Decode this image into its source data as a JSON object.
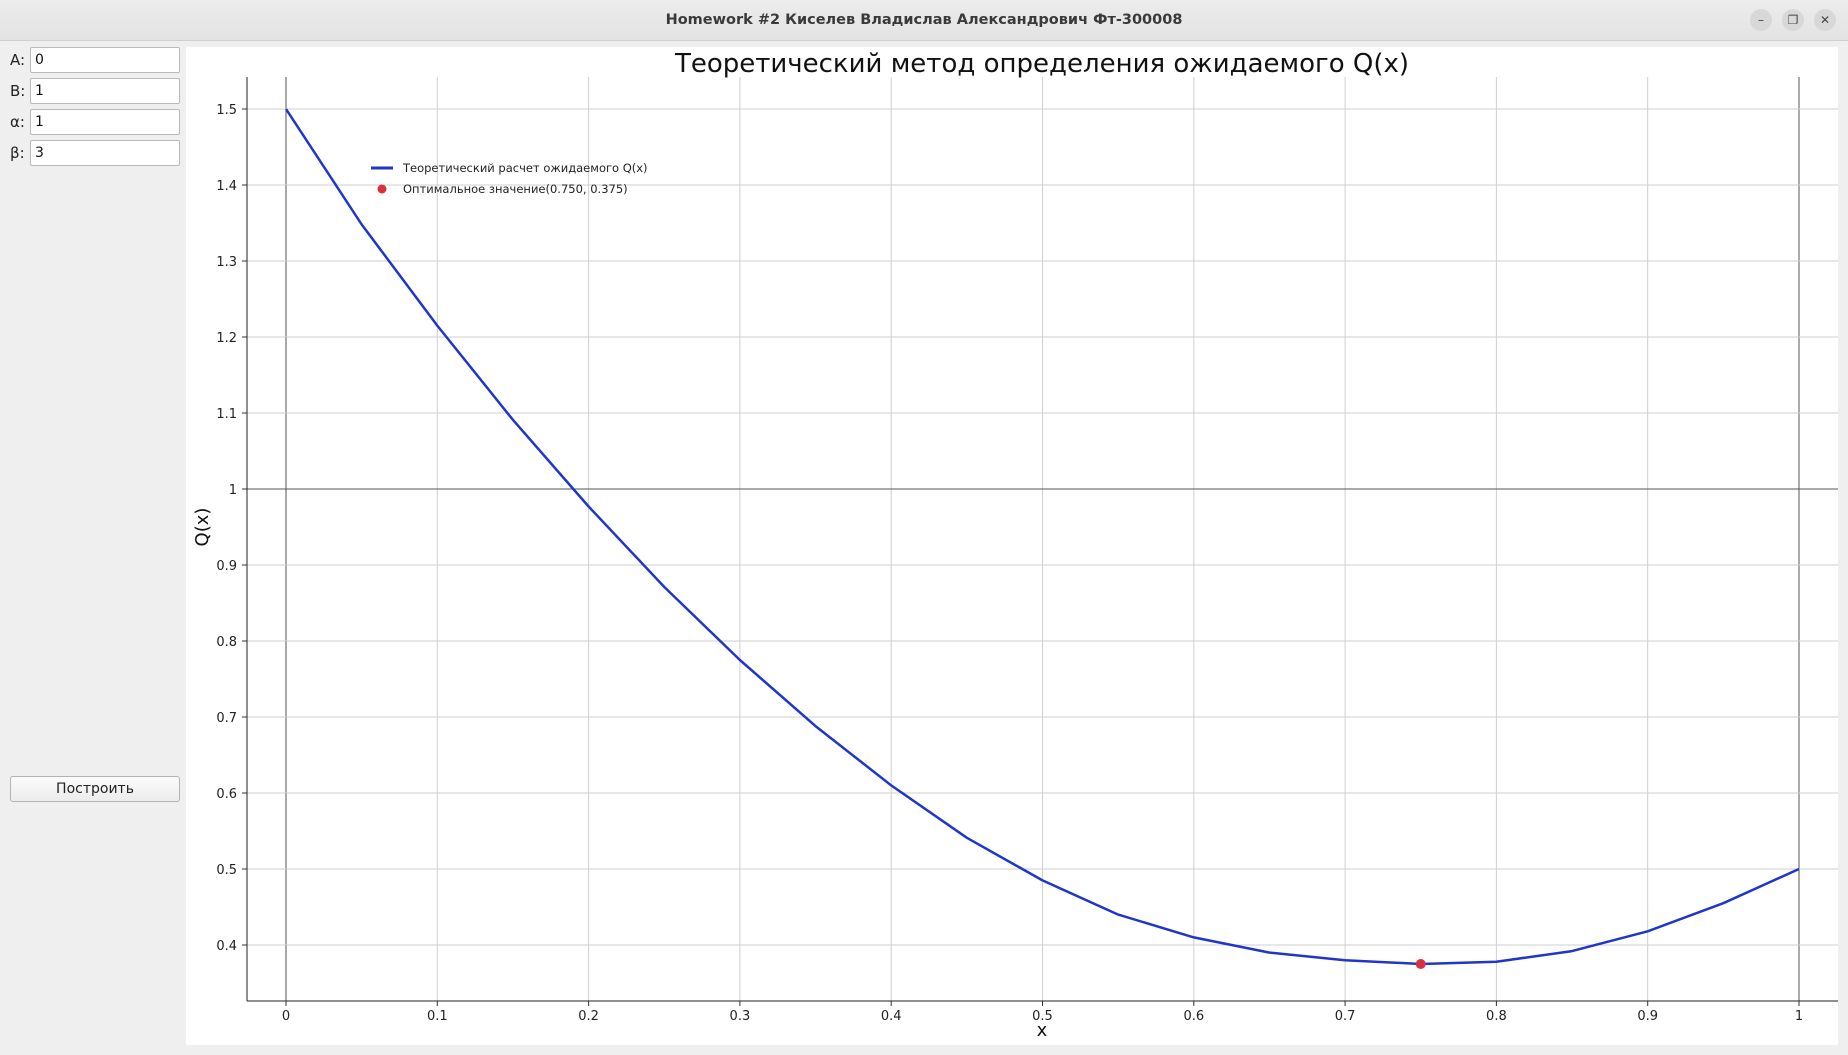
{
  "window": {
    "title": "Homework #2 Киселев Владислав Александрович Фт-300008",
    "buttons": {
      "minimize": "–",
      "restore": "❐",
      "close": "✕"
    }
  },
  "sidebar": {
    "params": [
      {
        "label": "A:",
        "value": "0"
      },
      {
        "label": "B:",
        "value": "1"
      },
      {
        "label": "α:",
        "value": "1"
      },
      {
        "label": "β:",
        "value": "3"
      }
    ],
    "build_button": "Построить"
  },
  "chart_data": {
    "type": "line",
    "title": "Теоретический метод определения ожидаемого Q(x)",
    "xlabel": "x",
    "ylabel": "Q(x)",
    "xlim": [
      0,
      1
    ],
    "ylim": [
      0.375,
      1.5
    ],
    "grid": true,
    "legend_position": "top-left",
    "x_ticks": [
      "0",
      "0.1",
      "0.2",
      "0.3",
      "0.4",
      "0.5",
      "0.6",
      "0.7",
      "0.8",
      "0.9",
      "1"
    ],
    "y_ticks": [
      "0.4",
      "0.5",
      "0.6",
      "0.7",
      "0.8",
      "0.9",
      "1",
      "1.1",
      "1.2",
      "1.3",
      "1.4",
      "1.5"
    ],
    "series": [
      {
        "name": "Теоретический расчет ожидаемого Q(x)",
        "color": "#1f36c8",
        "x": [
          0,
          0.05,
          0.1,
          0.15,
          0.2,
          0.25,
          0.3,
          0.35,
          0.4,
          0.45,
          0.5,
          0.55,
          0.6,
          0.65,
          0.7,
          0.75,
          0.8,
          0.85,
          0.9,
          0.95,
          1
        ],
        "y": [
          1.5,
          1.348,
          1.215,
          1.091,
          0.977,
          0.871,
          0.775,
          0.688,
          0.61,
          0.541,
          0.485,
          0.44,
          0.41,
          0.39,
          0.38,
          0.375,
          0.378,
          0.392,
          0.418,
          0.455,
          0.5
        ]
      }
    ],
    "optimum": {
      "name": "Оптимальное значение(0.750, 0.375)",
      "color": "#d9323d",
      "x": 0.75,
      "y": 0.375
    }
  }
}
